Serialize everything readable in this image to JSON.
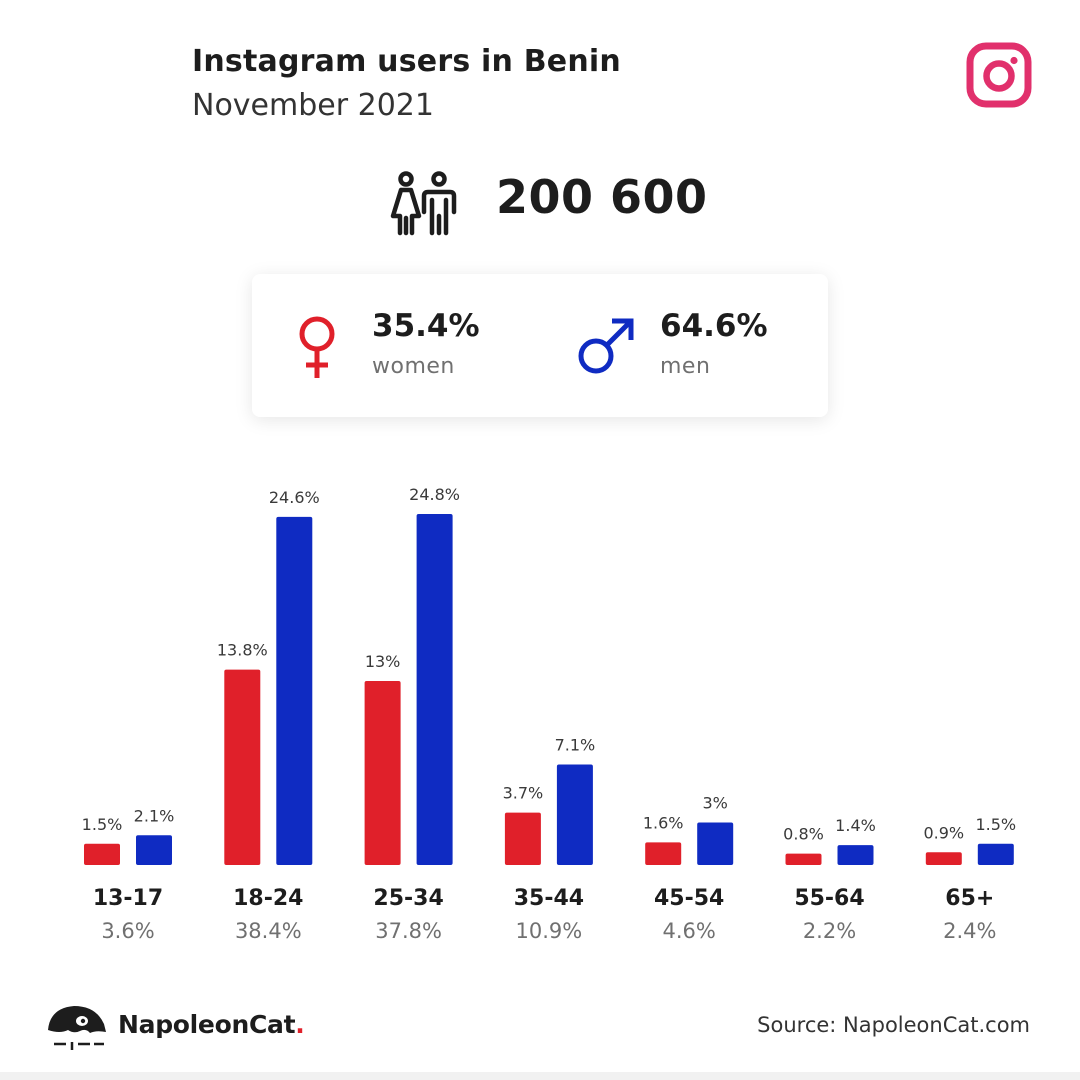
{
  "header": {
    "title": "Instagram users in Benin",
    "subtitle": "November 2021"
  },
  "colors": {
    "flag_green": "#008751",
    "flag_yellow": "#fcd116",
    "flag_red": "#e8112d",
    "instagram": "#e1306c",
    "women": "#e0202a",
    "men": "#0f2bc2",
    "text_dark": "#1d1d1d",
    "text_grey": "#707070"
  },
  "icons": {
    "flag": "benin-flag-icon",
    "brand": "instagram-icon",
    "total": "people-icon",
    "women": "female-icon",
    "men": "male-icon",
    "footer": "napoleoncat-logo-icon"
  },
  "total": {
    "value": "200 600"
  },
  "gender": {
    "women": {
      "pct": "35.4%",
      "label": "women"
    },
    "men": {
      "pct": "64.6%",
      "label": "men"
    }
  },
  "chart_data": {
    "type": "bar",
    "title": "",
    "xlabel": "",
    "ylabel": "",
    "ylim": [
      0,
      24.8
    ],
    "grid": false,
    "legend": "none",
    "categories": [
      "13-17",
      "18-24",
      "25-34",
      "35-44",
      "45-54",
      "55-64",
      "65+"
    ],
    "group_totals": [
      "3.6%",
      "38.4%",
      "37.8%",
      "10.9%",
      "4.6%",
      "2.2%",
      "2.4%"
    ],
    "series": [
      {
        "color": "#e0202a",
        "values": [
          1.5,
          13.8,
          13.0,
          3.7,
          1.6,
          0.8,
          0.9
        ],
        "labels": [
          "1.5%",
          "13.8%",
          "13%",
          "3.7%",
          "1.6%",
          "0.8%",
          "0.9%"
        ]
      },
      {
        "color": "#0f2bc2",
        "values": [
          2.1,
          24.6,
          24.8,
          7.1,
          3.0,
          1.4,
          1.5
        ],
        "labels": [
          "2.1%",
          "24.6%",
          "24.8%",
          "7.1%",
          "3%",
          "1.4%",
          "1.5%"
        ]
      }
    ]
  },
  "footer": {
    "brand_name": "NapoleonCat",
    "brand_dot": ".",
    "source": "Source: NapoleonCat.com"
  }
}
